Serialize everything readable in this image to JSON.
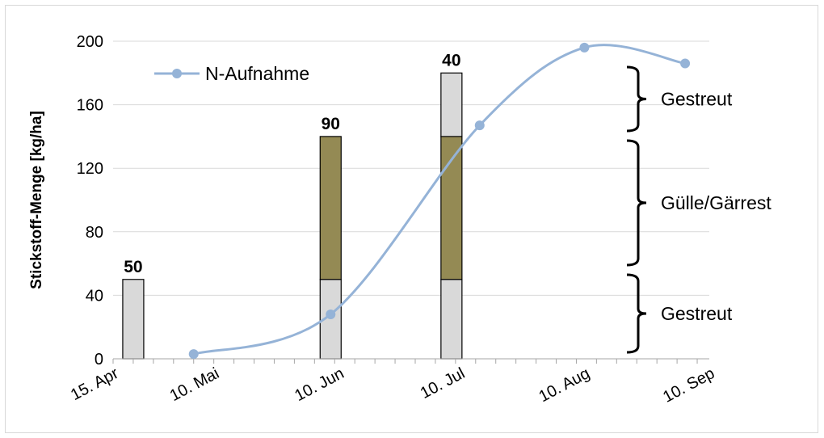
{
  "chart_data": {
    "type": "bar",
    "ylabel": "Stickstoff-Menge [kg/ha]",
    "ylim": [
      0,
      200
    ],
    "yticks": [
      0,
      40,
      80,
      120,
      160,
      200
    ],
    "x_ticks": [
      "15. Apr",
      "10. Mai",
      "10. Jun",
      "10. Jul",
      "10. Aug",
      "10. Sep"
    ],
    "grid": true,
    "legend_position": "top-left",
    "legend": [
      "N-Aufnahme"
    ],
    "stacked_bars": [
      {
        "date": "20. Apr",
        "segments": [
          {
            "kind": "gestreut",
            "value": 50
          }
        ],
        "label": "50"
      },
      {
        "date": "8. Jun",
        "segments": [
          {
            "kind": "gestreut",
            "value": 50
          },
          {
            "kind": "guelle",
            "value": 90
          }
        ],
        "label": "90"
      },
      {
        "date": "8. Jul",
        "segments": [
          {
            "kind": "gestreut",
            "value": 50
          },
          {
            "kind": "guelle",
            "value": 90
          },
          {
            "kind": "gestreut",
            "value": 40
          }
        ],
        "label": "40"
      }
    ],
    "series": [
      {
        "name": "N-Aufnahme",
        "type": "line",
        "points": [
          {
            "x": "5. Mai",
            "y": 3
          },
          {
            "x": "8. Jun",
            "y": 28
          },
          {
            "x": "15. Jul",
            "y": 147
          },
          {
            "x": "10. Aug",
            "y": 196
          },
          {
            "x": "4. Sep",
            "y": 186
          }
        ]
      }
    ],
    "annotations": [
      "Gestreut",
      "Gülle/Gärrest",
      "Gestreut"
    ],
    "colors": {
      "gestreut": "#d9d9d9",
      "guelle": "#948a54",
      "line": "#95b3d7",
      "grid": "#d9d9d9"
    }
  }
}
